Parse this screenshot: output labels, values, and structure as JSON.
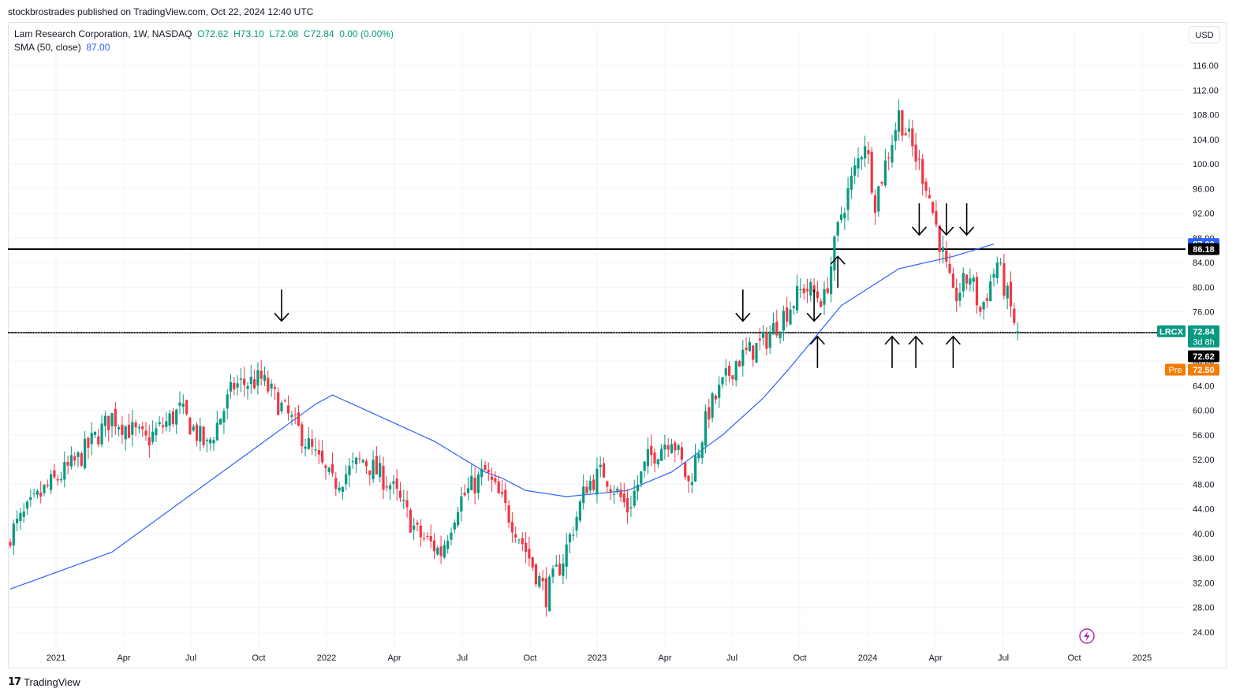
{
  "header": {
    "published": "stockbrostrades published on TradingView.com, Oct 22, 2024 12:40 UTC"
  },
  "legend": {
    "symbol": "Lam Research Corporation, 1W, NASDAQ",
    "open": "O72.62",
    "high": "H73.10",
    "low": "L72.08",
    "close": "C72.84",
    "change": "0.00 (0.00%)",
    "sma_label": "SMA (50, close)",
    "sma_value": "87.00"
  },
  "currency": "USD",
  "footer": {
    "brand": "TradingView"
  },
  "labels": {
    "sma": "87.00",
    "resistance": "86.18",
    "ticker": "LRCX",
    "last": "72.84",
    "countdown": "3d 8h",
    "support": "72.62",
    "pre_tag": "Pre",
    "pre_value": "72.50"
  },
  "colors": {
    "up": "#089981",
    "down": "#f23645",
    "sma": "#2962ff",
    "pre": "#f57c00",
    "line": "#000000"
  },
  "chart_data": {
    "type": "candlestick",
    "timeframe": "1W",
    "ylim": [
      22,
      117
    ],
    "y_ticks": [
      24,
      28,
      32,
      36,
      40,
      44,
      48,
      52,
      56,
      60,
      64,
      68,
      72,
      76,
      80,
      84,
      88,
      92,
      96,
      100,
      104,
      108,
      112,
      116
    ],
    "x_ticks": [
      "2021",
      "Apr",
      "Jul",
      "Oct",
      "2022",
      "Apr",
      "Jul",
      "Oct",
      "2023",
      "Apr",
      "Jul",
      "Oct",
      "2024",
      "Apr",
      "Jul",
      "Oct",
      "2025"
    ],
    "candle_anchors": [
      [
        0,
        40
      ],
      [
        10,
        47
      ],
      [
        20,
        52
      ],
      [
        30,
        59
      ],
      [
        40,
        55
      ],
      [
        50,
        60
      ],
      [
        58,
        54
      ],
      [
        66,
        64
      ],
      [
        74,
        65
      ],
      [
        86,
        56
      ],
      [
        95,
        48
      ],
      [
        104,
        52
      ],
      [
        112,
        48
      ],
      [
        120,
        40
      ],
      [
        127,
        37
      ],
      [
        132,
        45
      ],
      [
        140,
        50
      ],
      [
        149,
        41
      ],
      [
        158,
        30
      ],
      [
        163,
        36
      ],
      [
        170,
        48
      ],
      [
        175,
        50
      ],
      [
        182,
        44
      ],
      [
        188,
        52
      ],
      [
        195,
        56
      ],
      [
        200,
        48
      ],
      [
        206,
        60
      ],
      [
        214,
        68
      ],
      [
        222,
        71
      ],
      [
        234,
        80
      ],
      [
        240,
        78
      ],
      [
        245,
        92
      ],
      [
        252,
        104
      ],
      [
        255,
        94
      ],
      [
        262,
        108
      ],
      [
        270,
        97
      ],
      [
        278,
        78
      ],
      [
        283,
        82
      ],
      [
        286,
        76
      ],
      [
        291,
        84
      ],
      [
        297,
        72.62
      ]
    ],
    "sma50_anchors": [
      [
        0,
        31
      ],
      [
        30,
        37
      ],
      [
        60,
        49
      ],
      [
        80,
        57
      ],
      [
        90,
        61
      ],
      [
        95,
        62.5
      ],
      [
        105,
        60
      ],
      [
        125,
        55
      ],
      [
        140,
        50
      ],
      [
        145,
        49
      ],
      [
        152,
        47
      ],
      [
        164,
        46
      ],
      [
        182,
        47
      ],
      [
        195,
        50
      ],
      [
        210,
        56
      ],
      [
        222,
        62
      ],
      [
        230,
        67
      ],
      [
        245,
        77
      ],
      [
        262,
        83
      ],
      [
        278,
        85
      ],
      [
        290,
        87
      ]
    ],
    "horizontal_lines": [
      86.18,
      72.62
    ],
    "arrows_down": [
      [
        80,
        74.5
      ],
      [
        216,
        74.5
      ],
      [
        237,
        74.5
      ],
      [
        268,
        88.5
      ],
      [
        276,
        88.5
      ],
      [
        282,
        88.5
      ]
    ],
    "arrows_up": [
      [
        238,
        72
      ],
      [
        244,
        85
      ],
      [
        260,
        72
      ],
      [
        267,
        72
      ],
      [
        278,
        72
      ]
    ],
    "last_price": 72.84,
    "premarket_price": 72.5
  }
}
